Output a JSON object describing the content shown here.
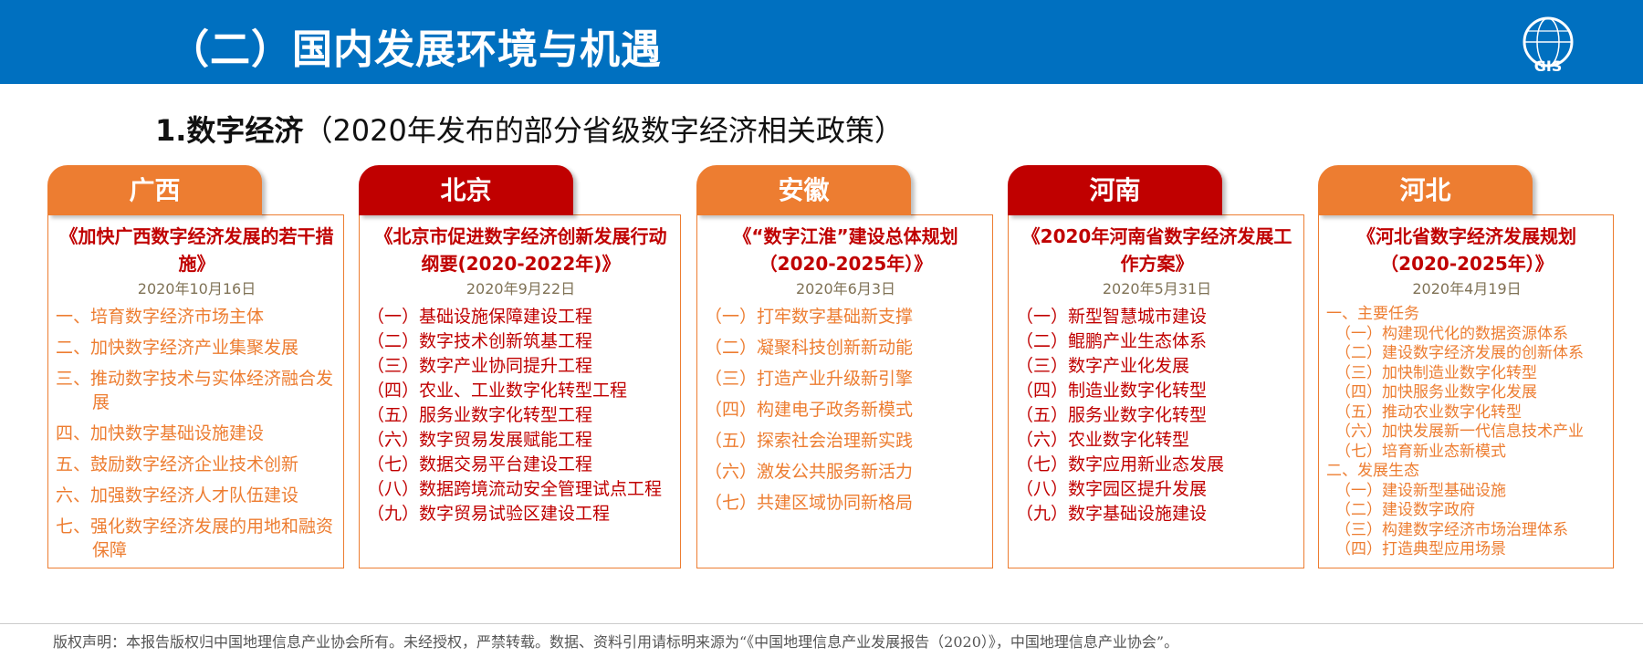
{
  "header": {
    "title": "（二）国内发展环境与机遇",
    "logo_text": "GIS"
  },
  "subtitle": {
    "bold": "1.数字经济",
    "rest": "（2020年发布的部分省级数字经济相关政策）"
  },
  "colors": {
    "header": "#0070c0",
    "orange": "#ed7d31",
    "red": "#c00000"
  },
  "columns": [
    {
      "region": "广西",
      "tab_color": "orange",
      "title": "《加快广西数字经济发展的若干措施》",
      "date": "2020年10月16日",
      "items": [
        "一、培育数字经济市场主体",
        "二、加快数字经济产业集聚发展",
        "三、推动数字技术与实体经济融合发展",
        "四、加快数字基础设施建设",
        "五、鼓励数字经济企业技术创新",
        "六、加强数字经济人才队伍建设",
        "七、强化数字经济发展的用地和融资保障"
      ]
    },
    {
      "region": "北京",
      "tab_color": "red",
      "title": "《北京市促进数字经济创新发展行动纲要(2020-2022年)》",
      "date": "2020年9月22日",
      "items": [
        "（一）基础设施保障建设工程",
        "（二）数字技术创新筑基工程",
        "（三）数字产业协同提升工程",
        "（四）农业、工业数字化转型工程",
        "（五）服务业数字化转型工程",
        "（六）数字贸易发展赋能工程",
        "（七）数据交易平台建设工程",
        "（八）数据跨境流动安全管理试点工程",
        "（九）数字贸易试验区建设工程"
      ]
    },
    {
      "region": "安徽",
      "tab_color": "orange",
      "title": "《“数字江淮”建设总体规划（2020-2025年）》",
      "date": "2020年6月3日",
      "items": [
        "（一）打牢数字基础新支撑",
        "（二）凝聚科技创新新动能",
        "（三）打造产业升级新引擎",
        "（四）构建电子政务新模式",
        "（五）探索社会治理新实践",
        "（六）激发公共服务新活力",
        "（七）共建区域协同新格局"
      ]
    },
    {
      "region": "河南",
      "tab_color": "red",
      "title": "《2020年河南省数字经济发展工作方案》",
      "date": "2020年5月31日",
      "items": [
        "（一）新型智慧城市建设",
        "（二）鲲鹏产业生态体系",
        "（三）数字产业化发展",
        "（四）制造业数字化转型",
        "（五）服务业数字化转型",
        "（六）农业数字化转型",
        "（七）数字应用新业态发展",
        "（八）数字园区提升发展",
        "（九）数字基础设施建设"
      ]
    },
    {
      "region": "河北",
      "tab_color": "orange",
      "title": "《河北省数字经济发展规划（2020-2025年）》",
      "date": "2020年4月19日",
      "items": [
        "一、主要任务",
        "（一）构建现代化的数据资源体系",
        "（二）建设数字经济发展的创新体系",
        "（三）加快制造业数字化转型",
        "（四）加快服务业数字化发展",
        "（五）推动农业数字化转型",
        "（六）加快发展新一代信息技术产业",
        "（七）培育新业态新模式",
        "二、发展生态",
        "（一）建设新型基础设施",
        "（二）建设数字政府",
        "（三）构建数字经济市场治理体系",
        "（四）打造典型应用场景"
      ]
    }
  ],
  "footer": "版权声明：本报告版权归中国地理信息产业协会所有。未经授权，严禁转载。数据、资料引用请标明来源为“《中国地理信息产业发展报告（2020）》，中国地理信息产业协会”。"
}
